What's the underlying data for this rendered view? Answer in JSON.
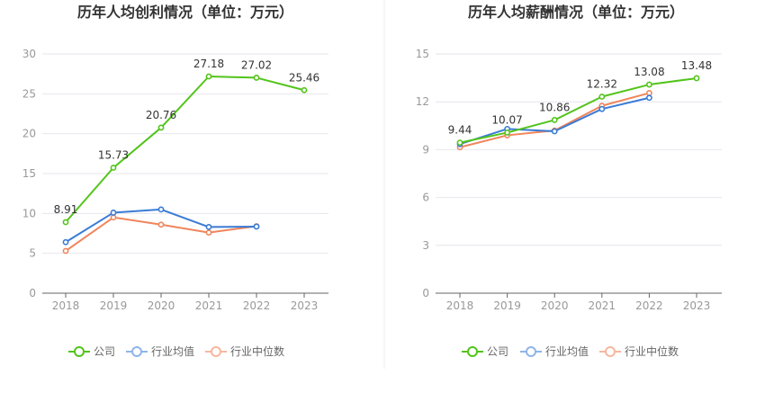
{
  "colors": {
    "company": "#52c41a",
    "industry_avg": "#3a7bd5",
    "industry_median": "#f0855c",
    "legend_industry_avg": "#8fb5ea",
    "legend_industry_median": "#f5b79f"
  },
  "chart_data": [
    {
      "type": "line",
      "title": "历年人均创利情况（单位：万元）",
      "categories": [
        "2018",
        "2019",
        "2020",
        "2021",
        "2022",
        "2023"
      ],
      "ylim": [
        0,
        30
      ],
      "yticks": [
        0,
        5,
        10,
        15,
        20,
        25,
        30
      ],
      "grid": true,
      "legend": "bottom",
      "series": [
        {
          "name": "公司",
          "key": "company",
          "values": [
            8.91,
            15.73,
            20.76,
            27.18,
            27.02,
            25.46
          ],
          "labels": [
            "8.91",
            "15.73",
            "20.76",
            "27.18",
            "27.02",
            "25.46"
          ]
        },
        {
          "name": "行业均值",
          "key": "industry_avg",
          "values": [
            6.4,
            10.1,
            10.5,
            8.3,
            8.35,
            null
          ]
        },
        {
          "name": "行业中位数",
          "key": "industry_median",
          "values": [
            5.3,
            9.5,
            8.6,
            7.6,
            8.4,
            null
          ]
        }
      ]
    },
    {
      "type": "line",
      "title": "历年人均薪酬情况（单位：万元）",
      "categories": [
        "2018",
        "2019",
        "2020",
        "2021",
        "2022",
        "2023"
      ],
      "ylim": [
        0,
        15
      ],
      "yticks": [
        0,
        3,
        6,
        9,
        12,
        15
      ],
      "grid": true,
      "legend": "bottom",
      "series": [
        {
          "name": "公司",
          "key": "company",
          "values": [
            9.44,
            10.07,
            10.86,
            12.32,
            13.08,
            13.48
          ],
          "labels": [
            "9.44",
            "10.07",
            "10.86",
            "12.32",
            "13.08",
            "13.48"
          ]
        },
        {
          "name": "行业均值",
          "key": "industry_avg",
          "values": [
            9.35,
            10.3,
            10.15,
            11.55,
            12.25,
            null
          ]
        },
        {
          "name": "行业中位数",
          "key": "industry_median",
          "values": [
            9.15,
            9.9,
            10.2,
            11.75,
            12.55,
            null
          ]
        }
      ]
    }
  ]
}
